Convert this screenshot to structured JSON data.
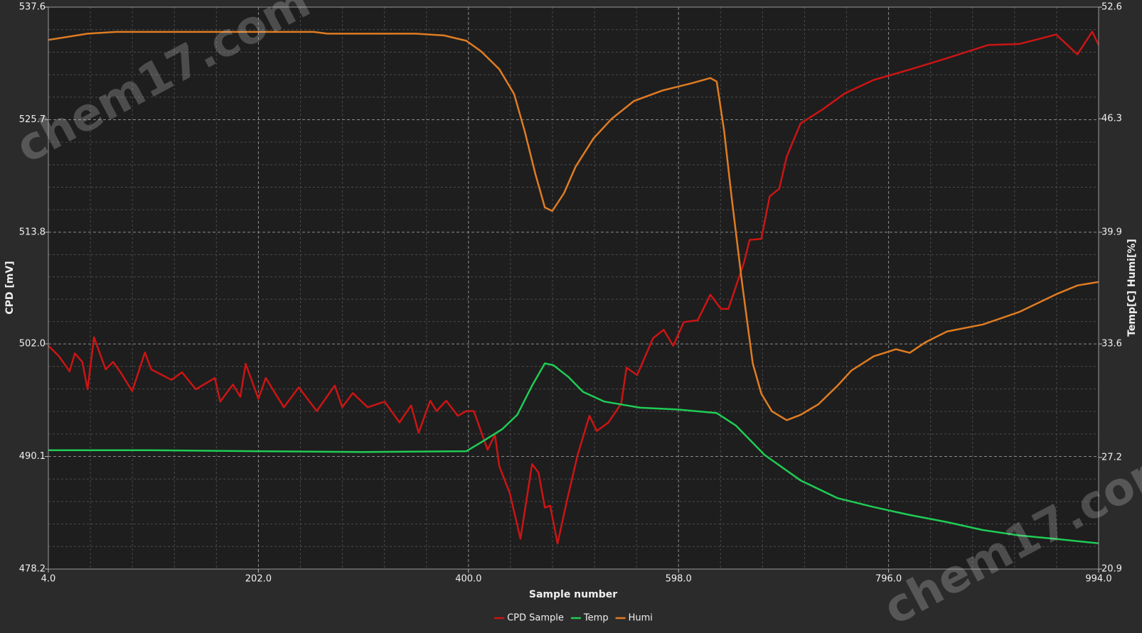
{
  "chart_data": {
    "type": "line",
    "x_label": "Sample number",
    "y_label": "CPD [mV]",
    "y2_label": "Temp[C] Humi[%]",
    "watermark": "chem17.com",
    "xlim": [
      4,
      994
    ],
    "xticks": [
      {
        "value": 4,
        "label": "4.0"
      },
      {
        "value": 202,
        "label": "202.0"
      },
      {
        "value": 400,
        "label": "400.0"
      },
      {
        "value": 598,
        "label": "598.0"
      },
      {
        "value": 796,
        "label": "796.0"
      },
      {
        "value": 994,
        "label": "994.0"
      }
    ],
    "ylim": [
      478.2,
      537.6
    ],
    "yticks": [
      478.2,
      {
        "value": 490.1,
        "label": "490.1"
      },
      {
        "value": 502,
        "label": "502.0"
      },
      513.8,
      525.7,
      537.6
    ],
    "y2lim": [
      20.9,
      52.6
    ],
    "y2ticks": [
      20.9,
      27.2,
      33.6,
      39.9,
      46.3,
      52.6
    ],
    "grid": true,
    "legend": "bottom",
    "series": [
      {
        "name": "CPD Sample",
        "color": "#cc1414",
        "x": [
          4,
          14,
          24,
          29,
          36,
          41,
          47,
          58,
          65,
          72,
          83,
          95,
          101,
          120,
          130,
          143,
          161,
          166,
          178,
          185,
          190,
          202,
          209,
          226,
          240,
          257,
          274,
          281,
          291,
          305,
          321,
          335,
          346,
          353,
          364,
          370,
          379,
          390,
          398,
          405,
          418,
          425,
          429,
          439,
          449,
          460,
          466,
          472,
          477,
          484,
          494,
          503,
          514,
          521,
          532,
          544,
          549,
          559,
          574,
          584,
          593,
          603,
          616,
          628,
          638,
          645,
          660,
          665,
          676,
          684,
          693,
          700,
          713,
          734,
          755,
          782,
          816,
          851,
          890,
          919,
          954,
          974,
          988,
          994
        ],
        "values": [
          501.8,
          500.7,
          499.1,
          501.0,
          500.1,
          497.2,
          502.7,
          499.3,
          500.1,
          499.0,
          497.0,
          501.1,
          499.3,
          498.2,
          499.0,
          497.2,
          498.4,
          495.9,
          497.7,
          496.4,
          499.9,
          496.2,
          498.4,
          495.3,
          497.4,
          494.9,
          497.6,
          495.3,
          496.8,
          495.3,
          495.9,
          493.7,
          495.5,
          492.6,
          496.0,
          494.9,
          496.0,
          494.4,
          494.9,
          494.9,
          490.8,
          492.4,
          489.1,
          486.2,
          481.4,
          489.3,
          488.4,
          484.7,
          484.9,
          480.9,
          486.0,
          490.3,
          494.4,
          492.8,
          493.7,
          495.7,
          499.5,
          498.7,
          502.6,
          503.5,
          501.8,
          504.3,
          504.5,
          507.2,
          505.7,
          505.7,
          510.7,
          513.0,
          513.1,
          517.6,
          518.4,
          521.8,
          525.3,
          526.8,
          528.5,
          529.9,
          531.0,
          532.2,
          533.6,
          533.7,
          534.7,
          532.6,
          535.0,
          533.6
        ]
      },
      {
        "name": "Temp",
        "color": "#1fcc55",
        "axis": "y2",
        "x": [
          4,
          100,
          200,
          300,
          398,
          412,
          432,
          446,
          460,
          472,
          480,
          494,
          508,
          528,
          562,
          597,
          634,
          652,
          679,
          713,
          748,
          782,
          816,
          851,
          885,
          919,
          954,
          994
        ],
        "values": [
          27.6,
          27.6,
          27.55,
          27.5,
          27.55,
          28.05,
          28.8,
          29.6,
          31.25,
          32.5,
          32.4,
          31.75,
          30.9,
          30.35,
          30.0,
          29.9,
          29.7,
          29.0,
          27.35,
          25.9,
          24.9,
          24.4,
          23.95,
          23.55,
          23.1,
          22.8,
          22.6,
          22.35
        ]
      },
      {
        "name": "Humi",
        "color": "#e07c22",
        "axis": "y2",
        "x": [
          4,
          41,
          68,
          254,
          267,
          350,
          377,
          398,
          412,
          429,
          443,
          453,
          463,
          472,
          479,
          490,
          501,
          518,
          535,
          556,
          583,
          610,
          628,
          634,
          641,
          648,
          658,
          668,
          676,
          686,
          700,
          713,
          730,
          748,
          761,
          782,
          803,
          816,
          831,
          851,
          885,
          919,
          954,
          974,
          994
        ],
        "values": [
          50.75,
          51.1,
          51.2,
          51.2,
          51.1,
          51.1,
          51.0,
          50.7,
          50.1,
          49.1,
          47.7,
          45.6,
          43.2,
          41.3,
          41.1,
          42.1,
          43.6,
          45.2,
          46.3,
          47.3,
          47.9,
          48.3,
          48.6,
          48.4,
          45.6,
          41.9,
          37.0,
          32.5,
          30.8,
          29.8,
          29.3,
          29.6,
          30.2,
          31.25,
          32.1,
          32.9,
          33.3,
          33.1,
          33.7,
          34.3,
          34.7,
          35.4,
          36.4,
          36.9,
          37.1
        ]
      }
    ]
  }
}
